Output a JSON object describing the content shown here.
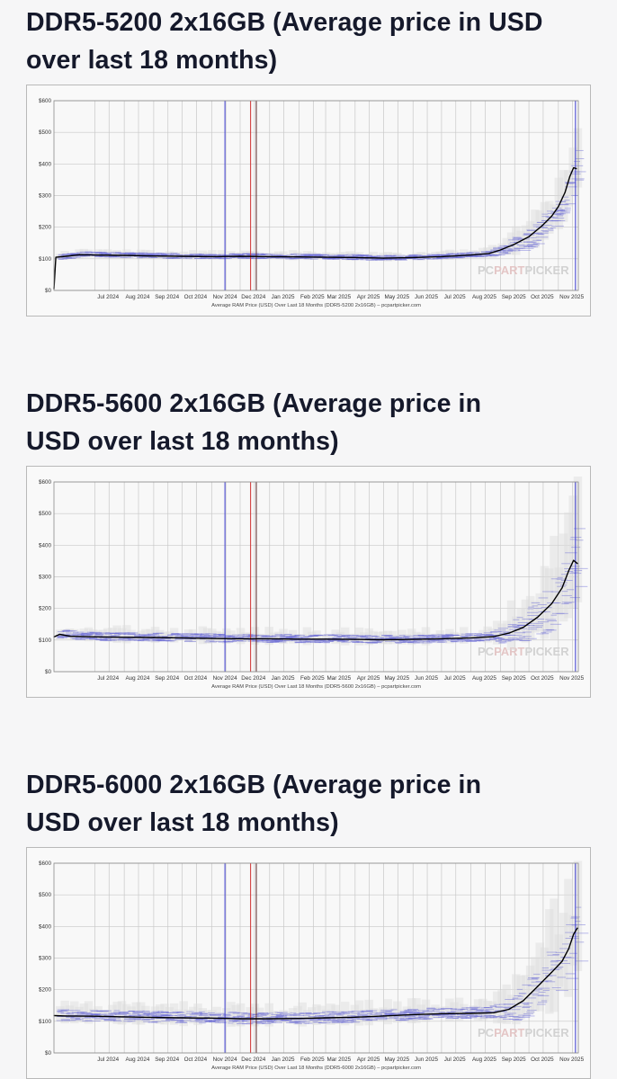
{
  "sections": [
    {
      "heading_line1": "DDR5-5200 2x16GB (Average price in USD",
      "heading_line2": "over last 18 months)"
    },
    {
      "heading_line1": "DDR5-5600 2x16GB (Average price in",
      "heading_line2": "USD over last 18 months)"
    },
    {
      "heading_line1": "DDR5-6000 2x16GB (Average price in",
      "heading_line2": "USD over last 18 months)"
    }
  ],
  "colors": {
    "average_line": "#000000",
    "retailer_bands": "#6a6ad6",
    "range_bands": "#dcdcdc",
    "blue_marker": "#3b3bd0",
    "red_marker": "#d03030",
    "dark_marker": "#5a2a2a",
    "grid": "#c8c8c8"
  },
  "watermark": {
    "pc": "PC",
    "part": "PART",
    "picker": "PICKER"
  },
  "chart_data": [
    {
      "type": "line",
      "title": "",
      "caption": "Average RAM Price (USD) Over Last 18 Months (DDR5-5200 2x16GB) – pcpartpicker.com",
      "ylabel": "",
      "y_unit": "USD",
      "ylim": [
        0,
        600
      ],
      "y_ticks": [
        "$0",
        "$100",
        "$200",
        "$300",
        "$400",
        "$500",
        "$600"
      ],
      "x_tick_labels": [
        "Jul 2024",
        "Aug 2024",
        "Sep 2024",
        "Oct 2024",
        "Nov 2024",
        "Dec 2024",
        "Jan 2025",
        "Feb 2025",
        "Mar 2025",
        "Apr 2025",
        "May 2025",
        "Jun 2025",
        "Jul 2025",
        "Aug 2025",
        "Sep 2025",
        "Oct 2025",
        "Nov 2025"
      ],
      "xlim": [
        "2024-05-19",
        "2025-11-22"
      ],
      "grid": true,
      "vertical_markers": [
        {
          "date": "2024-11-15",
          "color": "blue"
        },
        {
          "date": "2024-12-12",
          "color": "red"
        },
        {
          "date": "2024-12-18",
          "color": "dark"
        },
        {
          "date": "2025-11-19",
          "color": "blue"
        }
      ],
      "series": [
        {
          "points": [
            [
              "2024-05-19",
              5
            ],
            [
              "2024-05-21",
              105
            ],
            [
              "2024-06-01",
              108
            ],
            [
              "2024-06-15",
              113
            ],
            [
              "2024-07-01",
              112
            ],
            [
              "2024-08-01",
              111
            ],
            [
              "2024-09-01",
              109
            ],
            [
              "2024-10-01",
              108
            ],
            [
              "2024-11-01",
              107
            ],
            [
              "2024-12-01",
              108
            ],
            [
              "2025-01-01",
              107
            ],
            [
              "2025-02-01",
              106
            ],
            [
              "2025-03-01",
              105
            ],
            [
              "2025-04-01",
              104
            ],
            [
              "2025-05-01",
              102
            ],
            [
              "2025-06-01",
              104
            ],
            [
              "2025-07-01",
              107
            ],
            [
              "2025-08-01",
              112
            ],
            [
              "2025-08-20",
              117
            ],
            [
              "2025-09-01",
              128
            ],
            [
              "2025-09-15",
              145
            ],
            [
              "2025-10-01",
              170
            ],
            [
              "2025-10-15",
              205
            ],
            [
              "2025-10-25",
              235
            ],
            [
              "2025-11-01",
              265
            ],
            [
              "2025-11-08",
              310
            ],
            [
              "2025-11-13",
              360
            ],
            [
              "2025-11-17",
              388
            ],
            [
              "2025-11-20",
              385
            ]
          ]
        }
      ]
    },
    {
      "type": "line",
      "title": "",
      "caption": "Average RAM Price (USD) Over Last 18 Months (DDR5-5600 2x16GB) – pcpartpicker.com",
      "ylabel": "",
      "y_unit": "USD",
      "ylim": [
        0,
        600
      ],
      "y_ticks": [
        "$0",
        "$100",
        "$200",
        "$300",
        "$400",
        "$500",
        "$600"
      ],
      "x_tick_labels": [
        "Jul 2024",
        "Aug 2024",
        "Sep 2024",
        "Oct 2024",
        "Nov 2024",
        "Dec 2024",
        "Jan 2025",
        "Feb 2025",
        "Mar 2025",
        "Apr 2025",
        "May 2025",
        "Jun 2025",
        "Jul 2025",
        "Aug 2025",
        "Sep 2025",
        "Oct 2025",
        "Nov 2025"
      ],
      "xlim": [
        "2024-05-19",
        "2025-11-22"
      ],
      "grid": true,
      "vertical_markers": [
        {
          "date": "2024-11-15",
          "color": "blue"
        },
        {
          "date": "2024-12-12",
          "color": "red"
        },
        {
          "date": "2024-12-18",
          "color": "dark"
        },
        {
          "date": "2025-11-19",
          "color": "blue"
        }
      ],
      "series": [
        {
          "points": [
            [
              "2024-05-19",
              110
            ],
            [
              "2024-05-25",
              118
            ],
            [
              "2024-06-05",
              112
            ],
            [
              "2024-07-01",
              110
            ],
            [
              "2024-08-01",
              109
            ],
            [
              "2024-09-01",
              108
            ],
            [
              "2024-10-01",
              107
            ],
            [
              "2024-11-01",
              105
            ],
            [
              "2024-12-01",
              104
            ],
            [
              "2025-01-01",
              104
            ],
            [
              "2025-02-01",
              103
            ],
            [
              "2025-03-01",
              103
            ],
            [
              "2025-04-01",
              102
            ],
            [
              "2025-05-01",
              101
            ],
            [
              "2025-06-01",
              102
            ],
            [
              "2025-07-01",
              104
            ],
            [
              "2025-08-01",
              107
            ],
            [
              "2025-08-25",
              111
            ],
            [
              "2025-09-10",
              122
            ],
            [
              "2025-09-25",
              140
            ],
            [
              "2025-10-10",
              172
            ],
            [
              "2025-10-25",
              215
            ],
            [
              "2025-11-05",
              265
            ],
            [
              "2025-11-12",
              320
            ],
            [
              "2025-11-17",
              352
            ],
            [
              "2025-11-21",
              342
            ]
          ]
        }
      ]
    },
    {
      "type": "line",
      "title": "",
      "caption": "Average RAM Price (USD) Over Last 18 Months (DDR5-6000 2x16GB) – pcpartpicker.com",
      "ylabel": "",
      "y_unit": "USD",
      "ylim": [
        0,
        600
      ],
      "y_ticks": [
        "$0",
        "$100",
        "$200",
        "$300",
        "$400",
        "$500",
        "$600"
      ],
      "x_tick_labels": [
        "Jul 2024",
        "Aug 2024",
        "Sep 2024",
        "Oct 2024",
        "Nov 2024",
        "Dec 2024",
        "Jan 2025",
        "Feb 2025",
        "Mar 2025",
        "Apr 2025",
        "May 2025",
        "Jun 2025",
        "Jul 2025",
        "Aug 2025",
        "Sep 2025",
        "Oct 2025",
        "Nov 2025"
      ],
      "xlim": [
        "2024-05-19",
        "2025-11-22"
      ],
      "grid": true,
      "vertical_markers": [
        {
          "date": "2024-11-15",
          "color": "blue"
        },
        {
          "date": "2024-12-12",
          "color": "red"
        },
        {
          "date": "2024-12-18",
          "color": "dark"
        },
        {
          "date": "2025-11-19",
          "color": "blue"
        }
      ],
      "series": [
        {
          "points": [
            [
              "2024-05-19",
              118
            ],
            [
              "2024-06-01",
              117
            ],
            [
              "2024-07-01",
              116
            ],
            [
              "2024-08-01",
              114
            ],
            [
              "2024-09-01",
              112
            ],
            [
              "2024-10-01",
              111
            ],
            [
              "2024-11-01",
              110
            ],
            [
              "2024-12-01",
              108
            ],
            [
              "2025-01-01",
              108
            ],
            [
              "2025-02-01",
              109
            ],
            [
              "2025-03-01",
              111
            ],
            [
              "2025-04-01",
              113
            ],
            [
              "2025-05-01",
              117
            ],
            [
              "2025-06-01",
              121
            ],
            [
              "2025-07-01",
              124
            ],
            [
              "2025-08-01",
              125
            ],
            [
              "2025-08-25",
              127
            ],
            [
              "2025-09-10",
              138
            ],
            [
              "2025-09-25",
              165
            ],
            [
              "2025-10-10",
              210
            ],
            [
              "2025-10-25",
              255
            ],
            [
              "2025-11-05",
              290
            ],
            [
              "2025-11-12",
              330
            ],
            [
              "2025-11-17",
              375
            ],
            [
              "2025-11-21",
              395
            ]
          ]
        }
      ]
    }
  ]
}
